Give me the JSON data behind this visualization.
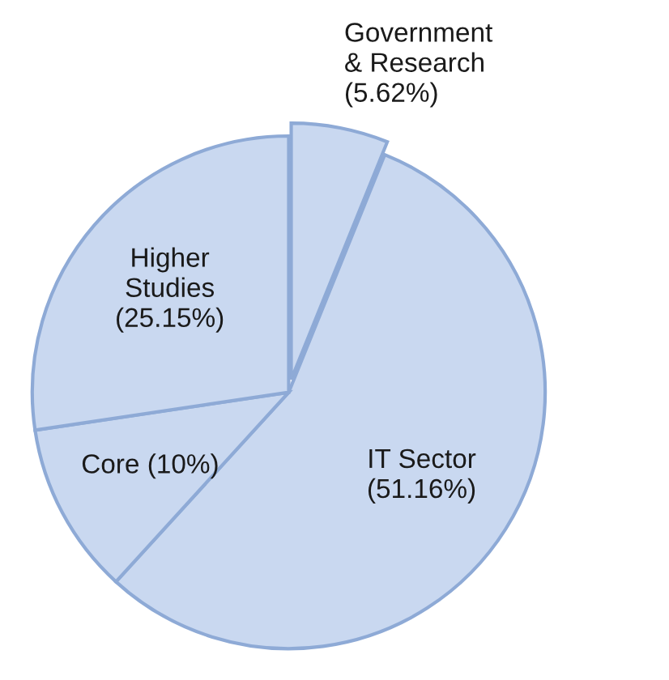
{
  "chart_data": {
    "type": "pie",
    "categories": [
      "Government\n& Research",
      "IT Sector",
      "Core",
      "Higher\nStudies"
    ],
    "values": [
      5.62,
      51.16,
      10,
      25.15
    ],
    "value_labels": [
      "(5.62%)",
      "(51.16%)",
      "(10%)",
      "(25.15%)"
    ],
    "colors": [
      "#c9d8f0",
      "#c9d8f0",
      "#c9d8f0",
      "#c9d8f0"
    ]
  }
}
